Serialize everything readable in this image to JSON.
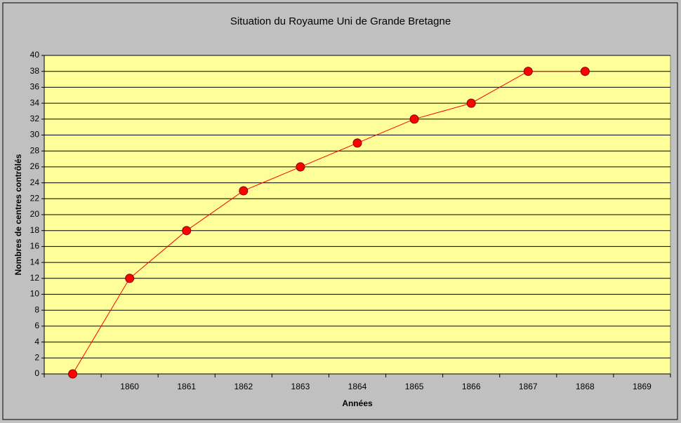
{
  "chart_data": {
    "type": "line",
    "title": "Situation du Royaume Uni de Grande Bretagne",
    "xlabel": "Années",
    "ylabel": "Nombres de centres contrôlés",
    "categories": [
      null,
      "1860",
      "1861",
      "1862",
      "1863",
      "1864",
      "1865",
      "1866",
      "1867",
      "1868",
      "1869"
    ],
    "series": [
      {
        "name": null,
        "color": "#ff0000",
        "values": [
          0,
          12,
          18,
          23,
          26,
          29,
          32,
          34,
          38,
          38,
          null
        ]
      }
    ],
    "ylim": [
      0,
      40
    ],
    "yticks": [
      0,
      2,
      4,
      6,
      8,
      10,
      12,
      14,
      16,
      18,
      20,
      22,
      24,
      26,
      28,
      30,
      32,
      34,
      36,
      38,
      40
    ],
    "grid": true
  }
}
